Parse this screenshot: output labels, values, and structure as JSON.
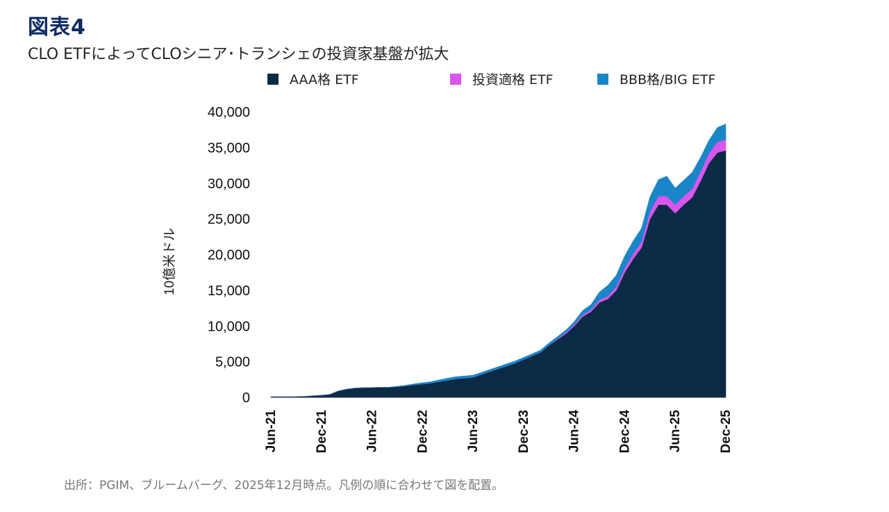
{
  "header": {
    "figure_label": "図表4",
    "title": "CLO ETFによってCLOシニア･トランシェの投資家基盤が拡大"
  },
  "footer": {
    "source": "出所：PGIM、ブルームバーグ、2025年12月時点。凡例の順に合わせて図を配置。"
  },
  "colors": {
    "aaa": "#0b2a45",
    "ig": "#d955ee",
    "bbb": "#1a86c7"
  },
  "chart_data": {
    "type": "area",
    "stacked": true,
    "ylabel": "10億米ドル",
    "xlabel": "",
    "ylim": [
      0,
      40000
    ],
    "yticks": [
      0,
      5000,
      10000,
      15000,
      20000,
      25000,
      30000,
      35000,
      40000
    ],
    "ytick_labels": [
      "0",
      "5,000",
      "10,000",
      "15,000",
      "20,000",
      "25,000",
      "30,000",
      "35,000",
      "40,000"
    ],
    "xtick_labels": [
      "Jun-21",
      "Dec-21",
      "Jun-22",
      "Dec-22",
      "Jun-23",
      "Dec-23",
      "Jun-24",
      "Dec-24",
      "Jun-25",
      "Dec-25"
    ],
    "legend_position": "top",
    "x": [
      "Jun-21",
      "Jul-21",
      "Aug-21",
      "Sep-21",
      "Oct-21",
      "Nov-21",
      "Dec-21",
      "Jan-22",
      "Feb-22",
      "Mar-22",
      "Apr-22",
      "May-22",
      "Jun-22",
      "Jul-22",
      "Aug-22",
      "Sep-22",
      "Oct-22",
      "Nov-22",
      "Dec-22",
      "Jan-23",
      "Feb-23",
      "Mar-23",
      "Apr-23",
      "May-23",
      "Jun-23",
      "Jul-23",
      "Aug-23",
      "Sep-23",
      "Oct-23",
      "Nov-23",
      "Dec-23",
      "Jan-24",
      "Feb-24",
      "Mar-24",
      "Apr-24",
      "May-24",
      "Jun-24",
      "Jul-24",
      "Aug-24",
      "Sep-24",
      "Oct-24",
      "Nov-24",
      "Dec-24",
      "Jan-25",
      "Feb-25",
      "Mar-25",
      "Apr-25",
      "May-25",
      "Jun-25",
      "Jul-25",
      "Aug-25",
      "Sep-25",
      "Oct-25",
      "Nov-25",
      "Dec-25"
    ],
    "series": [
      {
        "name": "AAA格 ETF",
        "values": [
          100,
          100,
          110,
          120,
          150,
          220,
          300,
          420,
          900,
          1150,
          1300,
          1350,
          1380,
          1400,
          1420,
          1500,
          1600,
          1750,
          1850,
          2000,
          2200,
          2400,
          2600,
          2700,
          2800,
          3200,
          3600,
          4000,
          4400,
          4800,
          5300,
          5800,
          6300,
          7300,
          8100,
          8900,
          10000,
          11300,
          12000,
          13300,
          13800,
          15000,
          17500,
          19400,
          21000,
          25000,
          27000,
          27000,
          25800,
          27000,
          28000,
          30300,
          32800,
          34300,
          34600
        ]
      },
      {
        "name": "投資適格 ETF",
        "values": [
          0,
          0,
          0,
          0,
          0,
          0,
          0,
          0,
          0,
          0,
          0,
          0,
          0,
          0,
          0,
          0,
          0,
          0,
          0,
          0,
          0,
          0,
          0,
          0,
          0,
          0,
          0,
          0,
          0,
          0,
          0,
          0,
          0,
          0,
          100,
          150,
          200,
          250,
          300,
          350,
          400,
          500,
          600,
          700,
          800,
          1000,
          1200,
          1200,
          1200,
          1200,
          1200,
          1300,
          1400,
          1500,
          1500
        ]
      },
      {
        "name": "BBB格/BIG ETF",
        "values": [
          0,
          0,
          0,
          0,
          0,
          0,
          0,
          0,
          0,
          0,
          0,
          0,
          0,
          0,
          0,
          50,
          100,
          150,
          200,
          200,
          250,
          300,
          300,
          300,
          300,
          300,
          300,
          300,
          300,
          300,
          300,
          300,
          300,
          300,
          300,
          350,
          400,
          600,
          700,
          1100,
          1500,
          1600,
          1700,
          1800,
          1900,
          2100,
          2300,
          2800,
          2300,
          2200,
          2300,
          2000,
          1800,
          2000,
          2200
        ]
      }
    ]
  }
}
